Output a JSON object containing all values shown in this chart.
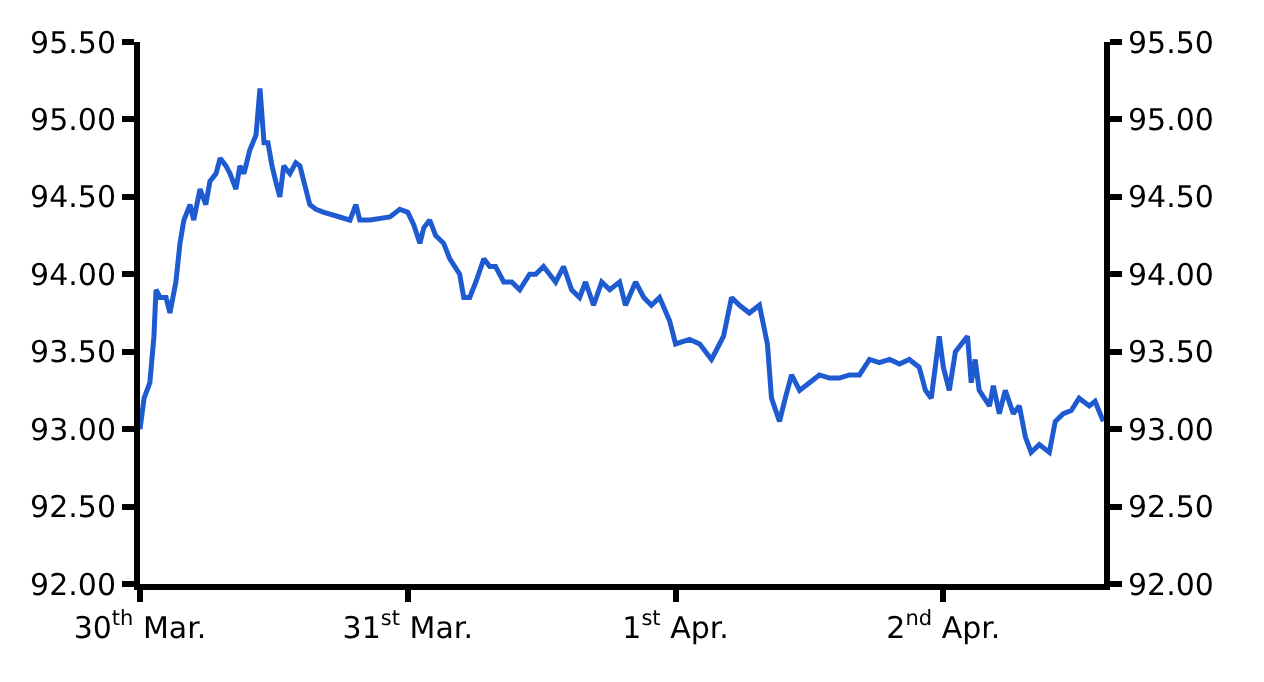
{
  "chart_data": {
    "type": "line",
    "x": [
      "--03-30T00:00",
      "--03-30T00:22",
      "--03-30T00:53",
      "--03-30T01:15",
      "--03-30T01:26",
      "--03-30T01:48",
      "--03-30T02:20",
      "--03-30T02:41",
      "--03-30T03:13",
      "--03-30T03:35",
      "--03-30T03:56",
      "--03-30T04:29",
      "--03-30T04:49",
      "--03-30T05:23",
      "--03-30T05:54",
      "--03-30T06:16",
      "--03-30T06:49",
      "--03-30T07:11",
      "--03-30T07:42",
      "--03-30T08:04",
      "--03-30T08:36",
      "--03-30T08:57",
      "--03-30T09:19",
      "--03-30T09:50",
      "--03-30T10:24",
      "--03-30T10:45",
      "--03-30T11:07",
      "--03-30T11:28",
      "--03-30T11:50",
      "--03-30T12:10",
      "--03-30T12:32",
      "--03-30T12:53",
      "--03-30T13:26",
      "--03-30T13:58",
      "--03-30T14:20",
      "--03-30T14:41",
      "--03-30T15:13",
      "--03-30T15:46",
      "--03-30T16:29",
      "--03-30T17:54",
      "--03-30T18:49",
      "--03-30T19:21",
      "--03-30T19:42",
      "--03-30T20:36",
      "--03-30T22:24",
      "--03-30T23:17",
      "--03-31T00:00",
      "--03-31T00:32",
      "--03-31T01:05",
      "--03-31T01:26",
      "--03-31T01:58",
      "--03-31T02:30",
      "--03-31T03:13",
      "--03-31T03:46",
      "--03-31T04:39",
      "--03-31T05:01",
      "--03-31T05:33",
      "--03-31T06:06",
      "--03-31T06:49",
      "--03-31T07:21",
      "--03-31T07:52",
      "--03-31T08:36",
      "--03-31T09:19",
      "--03-31T10:02",
      "--03-31T10:55",
      "--03-31T11:28",
      "--03-31T12:10",
      "--03-31T13:15",
      "--03-31T13:58",
      "--03-31T14:41",
      "--03-31T15:24",
      "--03-31T15:56",
      "--03-31T16:39",
      "--03-31T17:23",
      "--03-31T18:06",
      "--03-31T18:59",
      "--03-31T19:31",
      "--03-31T20:25",
      "--03-31T21:09",
      "--03-31T21:50",
      "--03-31T22:34",
      "--03-31T23:28",
      "--04-01T00:00",
      "--04-01T01:15",
      "--04-01T02:10",
      "--04-01T03:13",
      "--04-01T03:35",
      "--04-01T04:18",
      "--04-01T05:01",
      "--04-01T05:44",
      "--04-01T06:37",
      "--04-01T07:31",
      "--04-01T08:14",
      "--04-01T08:36",
      "--04-01T09:19",
      "--04-01T09:50",
      "--04-01T10:24",
      "--04-01T11:07",
      "--04-01T12:00",
      "--04-01T12:53",
      "--04-01T13:48",
      "--04-01T14:41",
      "--04-01T15:35",
      "--04-01T16:29",
      "--04-01T17:23",
      "--04-01T18:16",
      "--04-01T19:11",
      "--04-01T20:04",
      "--04-01T20:57",
      "--04-01T21:50",
      "--04-01T22:24",
      "--04-01T22:55",
      "--04-01T23:38",
      "--04-02T00:00",
      "--04-02T00:32",
      "--04-02T01:05",
      "--04-02T02:10",
      "--04-02T02:30",
      "--04-02T02:51",
      "--04-02T03:13",
      "--04-02T04:08",
      "--04-02T04:29",
      "--04-02T05:01",
      "--04-02T05:33",
      "--04-02T06:16",
      "--04-02T06:49",
      "--04-02T07:21",
      "--04-02T07:52",
      "--04-02T08:36",
      "--04-02T09:30",
      "--04-02T10:02",
      "--04-02T10:45",
      "--04-02T11:28",
      "--04-02T12:10",
      "--04-02T13:05",
      "--04-02T13:36",
      "--04-02T14:20"
    ],
    "series": [
      {
        "color": "#1f5bd0",
        "values": [
          93.0,
          93.2,
          93.3,
          93.6,
          93.9,
          93.85,
          93.85,
          93.75,
          93.95,
          94.2,
          94.35,
          94.45,
          94.35,
          94.55,
          94.45,
          94.6,
          94.65,
          94.75,
          94.7,
          94.65,
          94.55,
          94.7,
          94.65,
          94.8,
          94.9,
          95.2,
          94.85,
          94.85,
          94.7,
          94.6,
          94.5,
          94.7,
          94.65,
          94.72,
          94.7,
          94.6,
          94.45,
          94.42,
          94.4,
          94.37,
          94.35,
          94.45,
          94.35,
          94.35,
          94.37,
          94.42,
          94.4,
          94.32,
          94.2,
          94.3,
          94.35,
          94.25,
          94.2,
          94.1,
          94.0,
          93.85,
          93.85,
          93.95,
          94.1,
          94.05,
          94.05,
          93.95,
          93.95,
          93.9,
          94.0,
          94.0,
          94.05,
          93.95,
          94.05,
          93.9,
          93.85,
          93.95,
          93.8,
          93.95,
          93.9,
          93.95,
          93.8,
          93.95,
          93.85,
          93.8,
          93.85,
          93.7,
          93.55,
          93.58,
          93.55,
          93.45,
          93.5,
          93.6,
          93.85,
          93.8,
          93.75,
          93.8,
          93.55,
          93.2,
          93.05,
          93.2,
          93.35,
          93.25,
          93.3,
          93.35,
          93.33,
          93.33,
          93.35,
          93.35,
          93.45,
          93.43,
          93.45,
          93.42,
          93.45,
          93.4,
          93.25,
          93.2,
          93.6,
          93.4,
          93.25,
          93.5,
          93.6,
          93.3,
          93.45,
          93.25,
          93.15,
          93.28,
          93.1,
          93.25,
          93.1,
          93.15,
          92.95,
          92.85,
          92.9,
          92.85,
          93.05,
          93.1,
          93.12,
          93.2,
          93.15,
          93.18,
          93.05
        ]
      }
    ],
    "xlim": [
      "--03-30",
      "--04-02T14:24"
    ],
    "xticks": [
      {
        "value": "--03-30",
        "label": "30$^{th}$ Mar."
      },
      {
        "value": "--03-31",
        "label": "31$^{st}$ Mar."
      },
      {
        "value": "--04-01",
        "label": "1$^{st}$ Apr."
      },
      {
        "value": "--04-02",
        "label": "2$^{nd}$ Apr."
      }
    ],
    "ylim": [
      92,
      95.5
    ],
    "yticks": [
      {
        "value": 92,
        "label": "92.00"
      },
      {
        "value": 92.5,
        "label": "92.50"
      },
      {
        "value": 93,
        "label": "93.00"
      },
      {
        "value": 93.5,
        "label": "93.50"
      },
      {
        "value": 94,
        "label": "94.00"
      },
      {
        "value": 94.5,
        "label": "94.50"
      },
      {
        "value": 95,
        "label": "95.00"
      },
      {
        "value": 95.5,
        "label": "95.50"
      }
    ],
    "y2lim": [
      92,
      95.5
    ],
    "y2ticks": [
      {
        "value": 92,
        "label": "92.00"
      },
      {
        "value": 92.5,
        "label": "92.50"
      },
      {
        "value": 93,
        "label": "93.00"
      },
      {
        "value": 93.5,
        "label": "93.50"
      },
      {
        "value": 94,
        "label": "94.00"
      },
      {
        "value": 94.5,
        "label": "94.50"
      },
      {
        "value": 95,
        "label": "95.00"
      },
      {
        "value": 95.5,
        "label": "95.50"
      }
    ],
    "marker": "none",
    "line_style": "solid"
  }
}
